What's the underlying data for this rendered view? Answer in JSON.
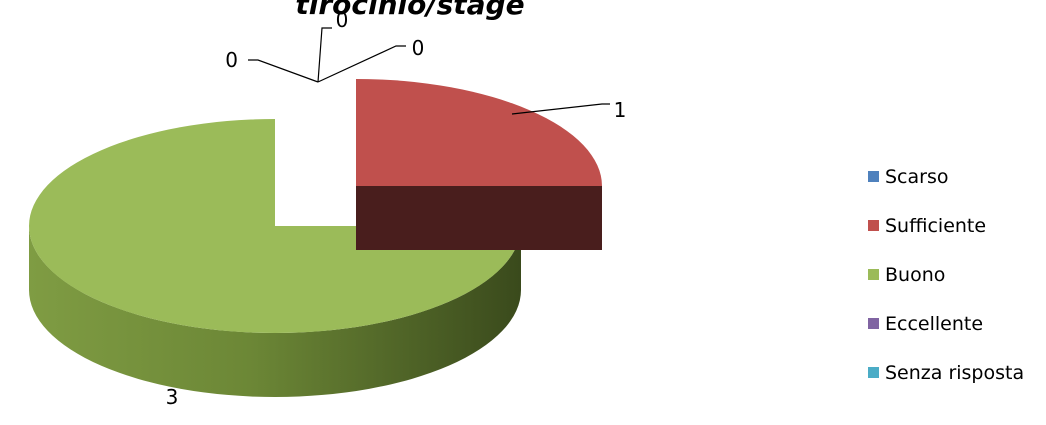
{
  "chart_data": {
    "type": "pie",
    "title": "tirocinio/stage",
    "categories": [
      "Scarso",
      "Sufficiente",
      "Buono",
      "Eccellente",
      "Senza risposta"
    ],
    "values": [
      0,
      1,
      3,
      0,
      0
    ],
    "data_labels": [
      "0",
      "1",
      "3",
      "0",
      "0"
    ],
    "colors": [
      "#4F81BD",
      "#C0504D",
      "#9BBB59",
      "#8064A2",
      "#4BACC6"
    ],
    "legend_position": "right",
    "exploded": true,
    "three_d": true
  }
}
